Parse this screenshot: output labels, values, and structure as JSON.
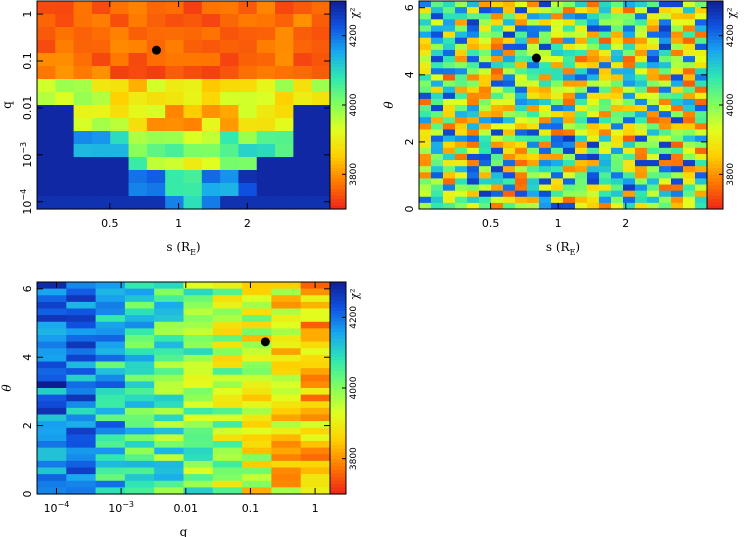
{
  "colorbar": {
    "label": "χ²",
    "ticks": [
      3800,
      4000,
      4200
    ],
    "range": [
      3700,
      4300
    ],
    "colormap": [
      "#f02818",
      "#ff7a00",
      "#ffd000",
      "#e0ff20",
      "#80ff60",
      "#30e8b0",
      "#18a8f0",
      "#1050e0",
      "#101c90"
    ]
  },
  "chart_data": [
    {
      "type": "heatmap",
      "id": "s-q",
      "xlabel": "s (R_E)",
      "ylabel": "q",
      "xscale": "log",
      "yscale": "log",
      "xticks": [
        "0.5",
        "1",
        "2"
      ],
      "yticks": [
        "10^-4",
        "10^-3",
        "0.01",
        "0.1",
        "1"
      ],
      "best_fit": {
        "s": 0.8,
        "q": 0.17
      },
      "grid_note": "16 x 16 grid of chi^2 values; low chi^2 (red) at q > 0.01 around s ~ 0.6-1.3, high chi^2 (dark blue) at q < 10^-3"
    },
    {
      "type": "heatmap",
      "id": "s-theta",
      "xlabel": "s (R_E)",
      "ylabel": "θ",
      "xscale": "log",
      "yscale": "linear",
      "xticks": [
        "0.5",
        "1",
        "2"
      ],
      "yticks": [
        "0",
        "2",
        "4",
        "6"
      ],
      "best_fit": {
        "s": 0.8,
        "theta": 4.5
      }
    },
    {
      "type": "heatmap",
      "id": "q-theta",
      "xlabel": "q",
      "ylabel": "θ",
      "xscale": "log",
      "yscale": "linear",
      "xticks": [
        "10^-4",
        "10^-3",
        "0.01",
        "0.1",
        "1"
      ],
      "yticks": [
        "0",
        "2",
        "4",
        "6"
      ],
      "best_fit": {
        "q": 0.17,
        "theta": 4.45
      }
    }
  ]
}
